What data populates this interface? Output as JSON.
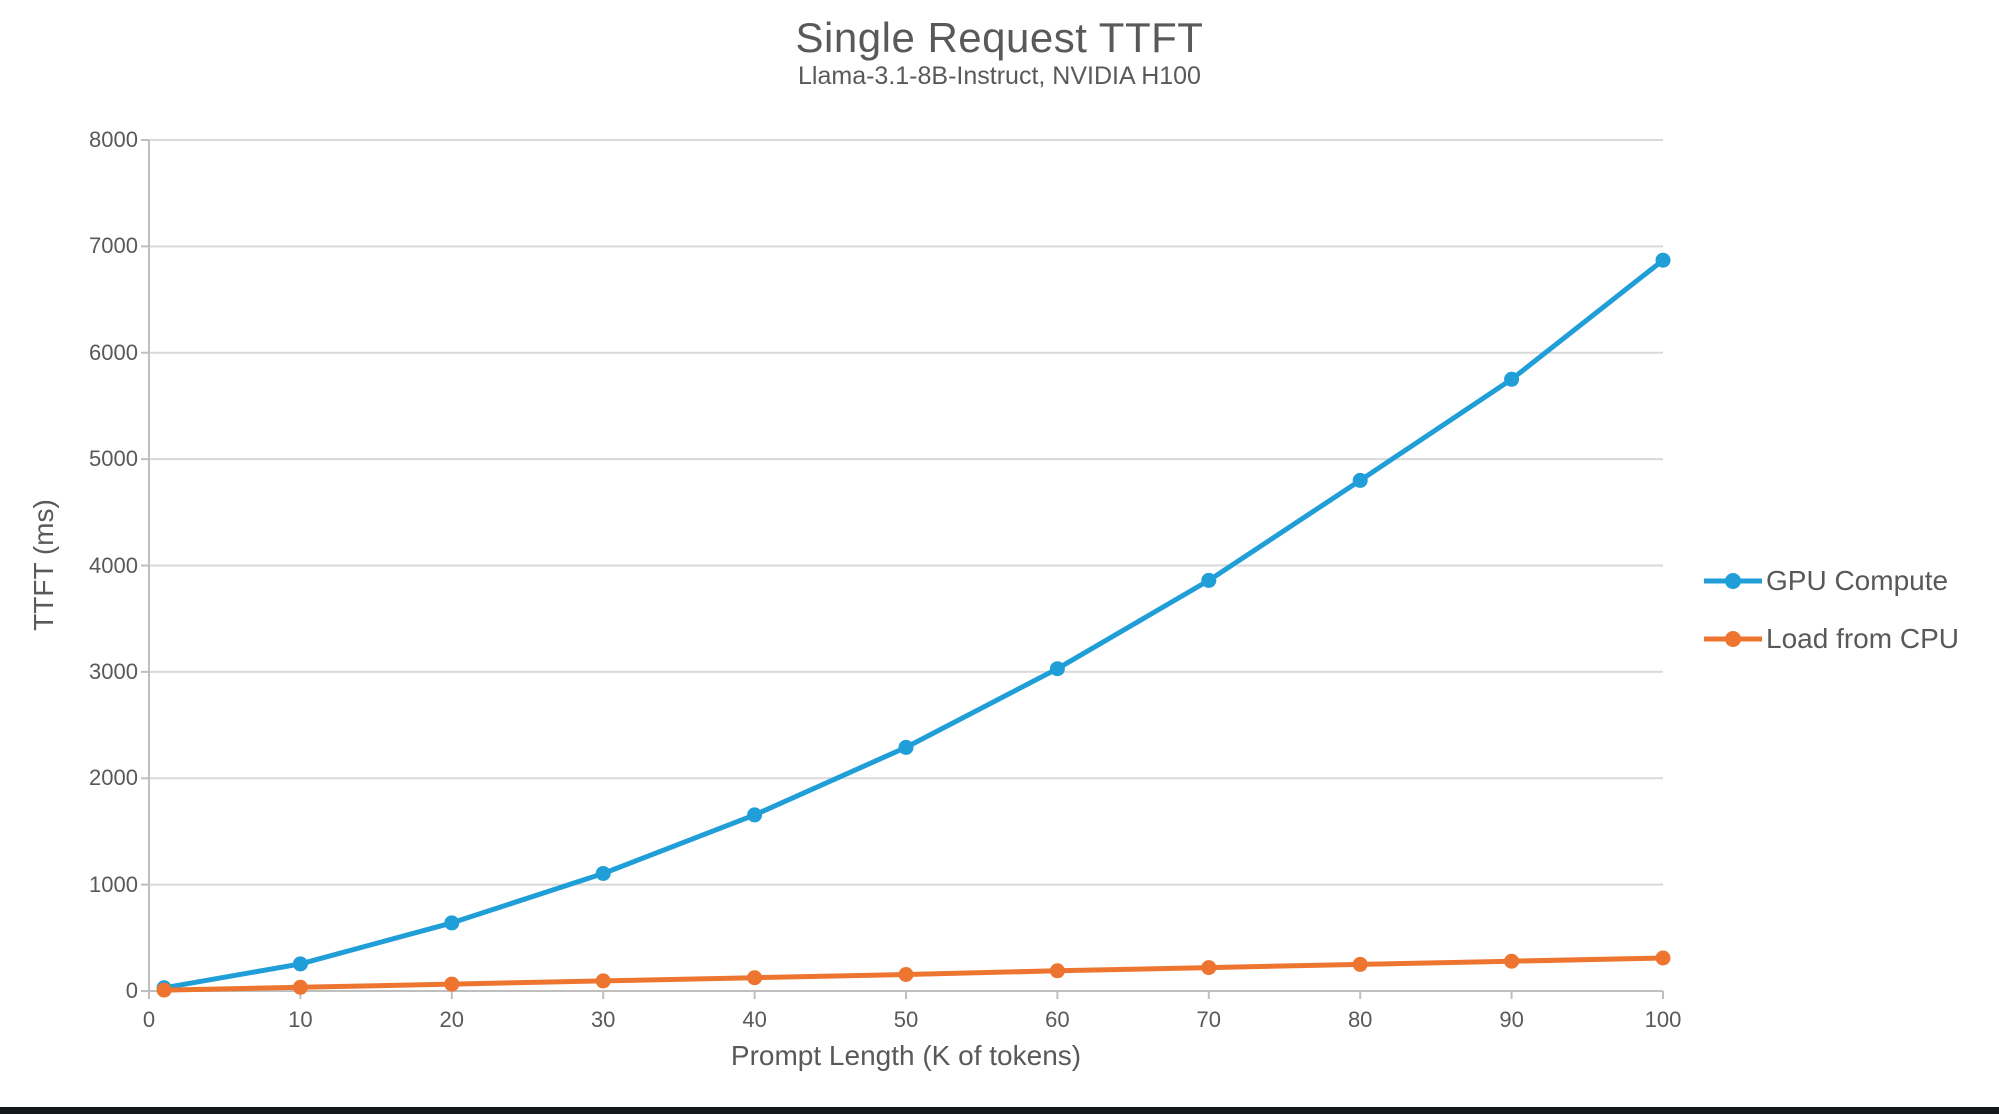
{
  "page": {
    "background": "#ffffff",
    "bottom_bar_color": "#15181b"
  },
  "chart_data": {
    "type": "line",
    "title": "Single Request TTFT",
    "subtitle": "Llama-3.1-8B-Instruct, NVIDIA H100",
    "xlabel": "Prompt Length (K of tokens)",
    "ylabel": "TTFT (ms)",
    "x": [
      1,
      10,
      20,
      30,
      40,
      50,
      60,
      70,
      80,
      90,
      100
    ],
    "series": [
      {
        "name": "GPU Compute",
        "color": "#1F9ED8",
        "values": [
          30,
          255,
          640,
          1105,
          1655,
          2290,
          3030,
          3860,
          4800,
          5750,
          6870
        ]
      },
      {
        "name": "Load from CPU",
        "color": "#ED7530",
        "values": [
          8,
          35,
          65,
          95,
          125,
          155,
          190,
          220,
          250,
          280,
          310
        ]
      }
    ],
    "xlim": [
      0,
      100
    ],
    "ylim": [
      0,
      8000
    ],
    "x_ticks": [
      0,
      10,
      20,
      30,
      40,
      50,
      60,
      70,
      80,
      90,
      100
    ],
    "y_ticks": [
      0,
      1000,
      2000,
      3000,
      4000,
      5000,
      6000,
      7000,
      8000
    ],
    "grid": "horizontal-only",
    "legend_position": "right",
    "styles": {
      "text_color": "#595959",
      "gridline_color": "#D9D9D9",
      "axis_line_color": "#BFBFBF"
    }
  }
}
